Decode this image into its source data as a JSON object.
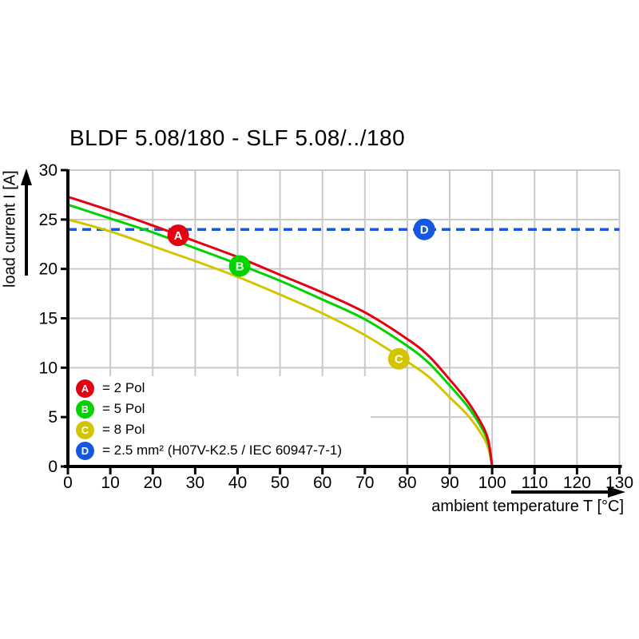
{
  "title": "BLDF 5.08/180 - SLF 5.08/../180",
  "chart_data": {
    "type": "line",
    "title": "BLDF 5.08/180 - SLF 5.08/../180",
    "xlabel": "ambient temperature T [°C]",
    "ylabel": "load current I [A]",
    "xlim": [
      0,
      130
    ],
    "ylim": [
      0,
      30
    ],
    "x_ticks": [
      0,
      10,
      20,
      30,
      40,
      50,
      60,
      70,
      80,
      90,
      100,
      110,
      120,
      130
    ],
    "y_ticks": [
      0,
      5,
      10,
      15,
      20,
      25,
      30
    ],
    "grid": true,
    "grid_color": "#c9c9c9",
    "series": [
      {
        "name": "8 Pol",
        "letter": "C",
        "color": "#d2c500",
        "points": [
          [
            0,
            25.0
          ],
          [
            10,
            23.8
          ],
          [
            20,
            22.3
          ],
          [
            30,
            20.8
          ],
          [
            40,
            19.2
          ],
          [
            50,
            17.4
          ],
          [
            60,
            15.5
          ],
          [
            70,
            13.3
          ],
          [
            80,
            10.6
          ],
          [
            85,
            9.1
          ],
          [
            90,
            7.0
          ],
          [
            94,
            5.3
          ],
          [
            97,
            3.6
          ],
          [
            99,
            2.0
          ],
          [
            100,
            0
          ]
        ]
      },
      {
        "name": "5 Pol",
        "letter": "B",
        "color": "#00d300",
        "points": [
          [
            0,
            26.5
          ],
          [
            10,
            25.1
          ],
          [
            20,
            23.7
          ],
          [
            30,
            22.1
          ],
          [
            40,
            20.5
          ],
          [
            50,
            18.8
          ],
          [
            60,
            16.9
          ],
          [
            70,
            14.9
          ],
          [
            80,
            12.2
          ],
          [
            85,
            10.5
          ],
          [
            90,
            8.2
          ],
          [
            94,
            6.2
          ],
          [
            97,
            4.3
          ],
          [
            99,
            2.5
          ],
          [
            100,
            0
          ]
        ]
      },
      {
        "name": "2 Pol",
        "letter": "A",
        "color": "#e60012",
        "points": [
          [
            0,
            27.3
          ],
          [
            10,
            25.9
          ],
          [
            20,
            24.4
          ],
          [
            30,
            22.8
          ],
          [
            40,
            21.2
          ],
          [
            50,
            19.4
          ],
          [
            60,
            17.6
          ],
          [
            70,
            15.6
          ],
          [
            80,
            12.9
          ],
          [
            85,
            11.2
          ],
          [
            90,
            8.8
          ],
          [
            94,
            6.7
          ],
          [
            97,
            4.7
          ],
          [
            99,
            2.8
          ],
          [
            100,
            0
          ]
        ]
      }
    ],
    "reference_line": {
      "letter": "D",
      "color": "#1557e0",
      "value": 24,
      "style": "dashed",
      "name": "2.5 mm² (H07V-K2.5 / IEC 60947-7-1)"
    },
    "markers": [
      {
        "letter": "A",
        "x": 26,
        "y": 23.4,
        "color": "#e60012"
      },
      {
        "letter": "B",
        "x": 40.5,
        "y": 20.3,
        "color": "#00d300"
      },
      {
        "letter": "C",
        "x": 78,
        "y": 10.9,
        "color": "#d2c500"
      },
      {
        "letter": "D",
        "x": 84,
        "y": 24,
        "color": "#1557e0"
      }
    ],
    "legend_position": "bottom-left-inside",
    "legend": [
      {
        "letter": "A",
        "color": "#e60012",
        "label": "= 2 Pol"
      },
      {
        "letter": "B",
        "color": "#00d300",
        "label": "= 5 Pol"
      },
      {
        "letter": "C",
        "color": "#d2c500",
        "label": "= 8 Pol"
      },
      {
        "letter": "D",
        "color": "#1557e0",
        "label": "= 2.5 mm² (H07V-K2.5 / IEC 60947-7-1)"
      }
    ]
  }
}
